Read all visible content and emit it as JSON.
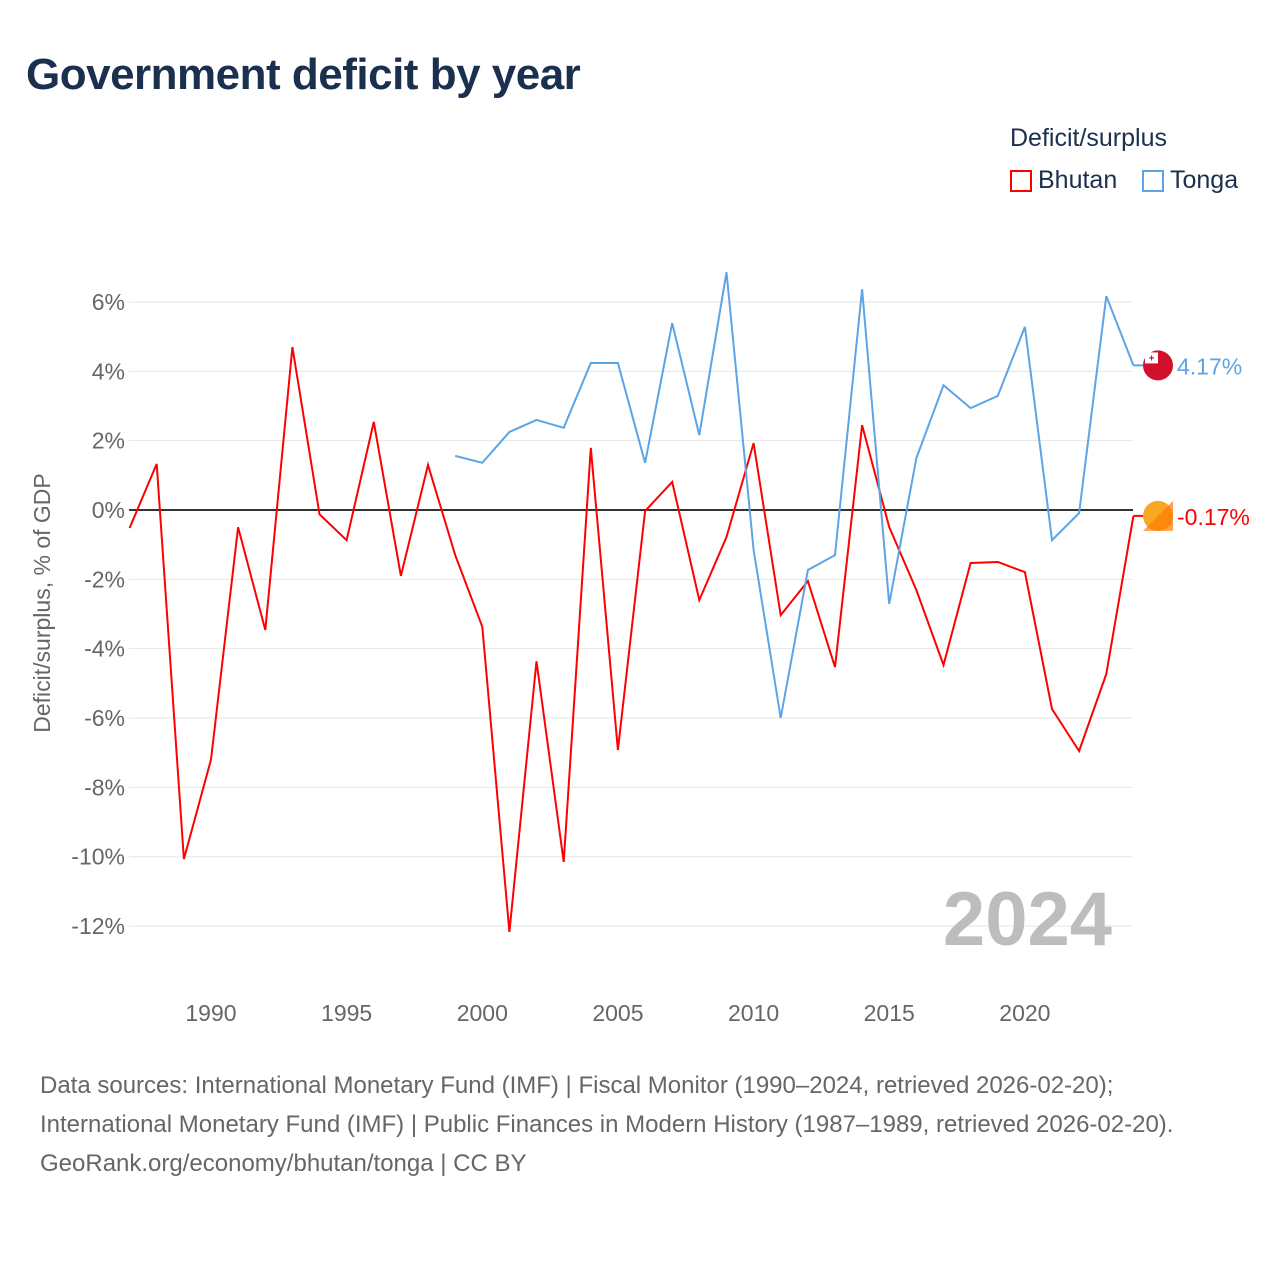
{
  "title": "Government deficit by year",
  "legend": {
    "title": "Deficit/surplus",
    "items": [
      {
        "name": "Bhutan",
        "color": "#ff0000"
      },
      {
        "name": "Tonga",
        "color": "#5ba4e6"
      }
    ]
  },
  "year_label": "2024",
  "sources": {
    "line1": "Data sources: International Monetary Fund (IMF) | Fiscal Monitor (1990–2024, retrieved 2026-02-20); International Monetary Fund (IMF) | Public Finances in Modern History (1987–1989, retrieved 2026-02-20).",
    "line2": "GeoRank.org/economy/bhutan/tonga | CC BY"
  },
  "chart_data": {
    "type": "line",
    "title": "Government deficit by year",
    "xlabel": "",
    "ylabel": "Deficit/surplus, % of GDP",
    "xlim": [
      1987,
      2024
    ],
    "ylim": [
      -13.5,
      7.5
    ],
    "yticks": [
      6,
      4,
      2,
      0,
      -2,
      -4,
      -6,
      -8,
      -10,
      -12
    ],
    "ytick_labels": [
      "6%",
      "4%",
      "2%",
      "0%",
      "-2%",
      "-4%",
      "-6%",
      "-8%",
      "-10%",
      "-12%"
    ],
    "xticks": [
      1990,
      1995,
      2000,
      2005,
      2010,
      2015,
      2020
    ],
    "xtick_labels": [
      "1990",
      "1995",
      "2000",
      "2005",
      "2010",
      "2015",
      "2020"
    ],
    "grid": true,
    "series": [
      {
        "name": "Bhutan",
        "color": "#ff0000",
        "end_label": "-0.17%",
        "start": 1987,
        "values": [
          -0.52,
          1.33,
          -10.07,
          -7.2,
          -0.5,
          -3.46,
          4.7,
          -0.12,
          -0.87,
          2.54,
          -1.9,
          1.3,
          -1.3,
          -3.37,
          -12.17,
          -4.36,
          -10.15,
          1.79,
          -6.92,
          -0.03,
          0.81,
          -2.6,
          -0.78,
          1.93,
          -3.03,
          -2.05,
          -4.53,
          2.45,
          -0.49,
          -2.31,
          -4.47,
          -1.53,
          -1.5,
          -1.79,
          -5.74,
          -6.95,
          -4.73,
          -0.17
        ]
      },
      {
        "name": "Tonga",
        "color": "#5ba4e6",
        "end_label": "4.17%",
        "start": 1999,
        "values": [
          1.56,
          1.36,
          2.25,
          2.6,
          2.37,
          4.24,
          4.24,
          1.36,
          5.39,
          2.16,
          6.86,
          -1.15,
          -6.0,
          -1.73,
          -1.3,
          6.37,
          -2.71,
          1.5,
          3.6,
          2.94,
          3.29,
          5.28,
          -0.87,
          -0.09,
          6.17,
          4.17
        ]
      }
    ]
  }
}
